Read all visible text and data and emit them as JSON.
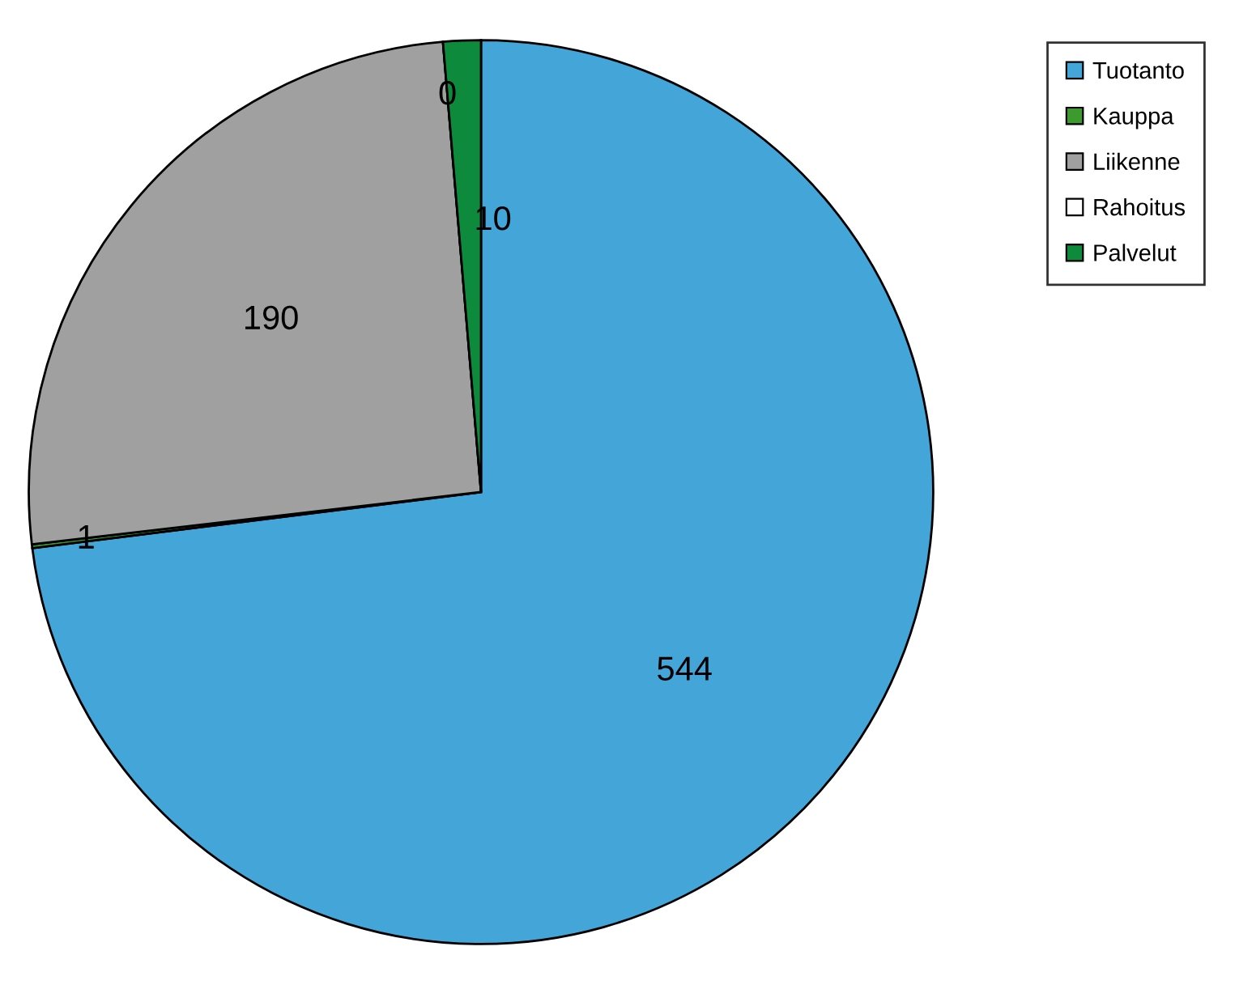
{
  "chart_data": {
    "type": "pie",
    "categories": [
      "Tuotanto",
      "Kauppa",
      "Liikenne",
      "Rahoitus",
      "Palvelut"
    ],
    "values": [
      544,
      1,
      190,
      0,
      10
    ],
    "colors": [
      "#43a5d8",
      "#3c9a2e",
      "#a0a0a0",
      "#ffffff",
      "#0e8a3c"
    ],
    "value_labels": [
      "544",
      "1",
      "190",
      "0",
      "10"
    ],
    "legend": "top right"
  }
}
